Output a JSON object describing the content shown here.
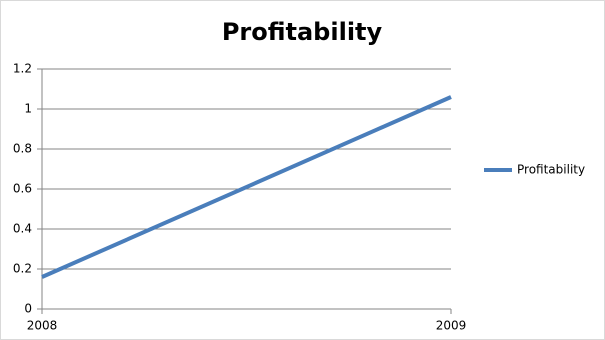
{
  "chart_data": {
    "type": "line",
    "title": "Profitability",
    "x": [
      2008,
      2009
    ],
    "series": [
      {
        "name": "Profitability",
        "color": "#4a7ebb",
        "values": [
          0.16,
          1.06
        ]
      }
    ],
    "xlim": [
      2008,
      2009
    ],
    "xticks": [
      2008,
      2009
    ],
    "ylim": [
      0,
      1.2
    ],
    "yticks": [
      0,
      0.2,
      0.4,
      0.6,
      0.8,
      1,
      1.2
    ],
    "grid": true,
    "legend": "right"
  }
}
